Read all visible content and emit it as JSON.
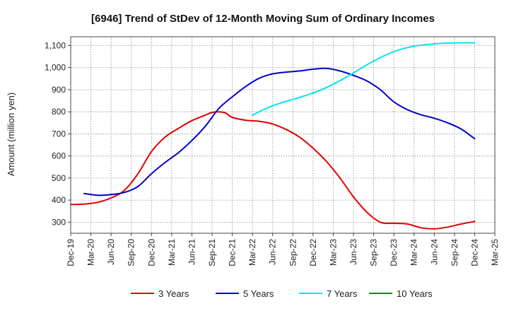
{
  "chart_data": {
    "type": "line",
    "title": "[6946]  Trend of StDev of 12-Month Moving Sum of Ordinary Incomes",
    "ylabel": "Amount (million yen)",
    "xlabel": "",
    "ylim": [
      250,
      1140
    ],
    "yticks": [
      300,
      400,
      500,
      600,
      700,
      800,
      900,
      1000,
      1100
    ],
    "ytick_labels": [
      "300",
      "400",
      "500",
      "600",
      "700",
      "800",
      "900",
      "1,000",
      "1,100"
    ],
    "xlim": [
      0,
      63
    ],
    "xticks": [
      {
        "m": 0,
        "label": "Dec-19"
      },
      {
        "m": 3,
        "label": "Mar-20"
      },
      {
        "m": 6,
        "label": "Jun-20"
      },
      {
        "m": 9,
        "label": "Sep-20"
      },
      {
        "m": 12,
        "label": "Dec-20"
      },
      {
        "m": 15,
        "label": "Mar-21"
      },
      {
        "m": 18,
        "label": "Jun-21"
      },
      {
        "m": 21,
        "label": "Sep-21"
      },
      {
        "m": 24,
        "label": "Dec-21"
      },
      {
        "m": 27,
        "label": "Mar-22"
      },
      {
        "m": 30,
        "label": "Jun-22"
      },
      {
        "m": 33,
        "label": "Sep-22"
      },
      {
        "m": 36,
        "label": "Dec-22"
      },
      {
        "m": 39,
        "label": "Mar-23"
      },
      {
        "m": 42,
        "label": "Jun-23"
      },
      {
        "m": 45,
        "label": "Sep-23"
      },
      {
        "m": 48,
        "label": "Dec-23"
      },
      {
        "m": 51,
        "label": "Mar-24"
      },
      {
        "m": 54,
        "label": "Jun-24"
      },
      {
        "m": 57,
        "label": "Sep-24"
      },
      {
        "m": 60,
        "label": "Dec-24"
      },
      {
        "m": 63,
        "label": "Mar-25"
      }
    ],
    "grid": true,
    "legend_position": "bottom",
    "series": [
      {
        "name": "3 Years",
        "color": "#e00000",
        "points": [
          [
            0,
            380
          ],
          [
            2,
            382
          ],
          [
            4,
            390
          ],
          [
            6,
            410
          ],
          [
            8,
            445
          ],
          [
            10,
            520
          ],
          [
            12,
            620
          ],
          [
            14,
            685
          ],
          [
            16,
            725
          ],
          [
            18,
            760
          ],
          [
            20,
            785
          ],
          [
            21,
            797
          ],
          [
            22,
            800
          ],
          [
            23,
            795
          ],
          [
            24,
            775
          ],
          [
            26,
            762
          ],
          [
            28,
            757
          ],
          [
            30,
            745
          ],
          [
            32,
            720
          ],
          [
            34,
            685
          ],
          [
            36,
            635
          ],
          [
            38,
            575
          ],
          [
            40,
            500
          ],
          [
            42,
            415
          ],
          [
            44,
            345
          ],
          [
            46,
            300
          ],
          [
            48,
            295
          ],
          [
            50,
            292
          ],
          [
            52,
            275
          ],
          [
            54,
            270
          ],
          [
            56,
            278
          ],
          [
            58,
            292
          ],
          [
            60,
            303
          ]
        ]
      },
      {
        "name": "5 Years",
        "color": "#0000cc",
        "points": [
          [
            2,
            430
          ],
          [
            4,
            422
          ],
          [
            6,
            425
          ],
          [
            8,
            435
          ],
          [
            10,
            462
          ],
          [
            12,
            520
          ],
          [
            14,
            570
          ],
          [
            16,
            615
          ],
          [
            18,
            670
          ],
          [
            20,
            735
          ],
          [
            22,
            815
          ],
          [
            24,
            868
          ],
          [
            26,
            915
          ],
          [
            28,
            952
          ],
          [
            30,
            972
          ],
          [
            32,
            980
          ],
          [
            34,
            985
          ],
          [
            36,
            993
          ],
          [
            38,
            997
          ],
          [
            40,
            985
          ],
          [
            42,
            965
          ],
          [
            44,
            940
          ],
          [
            46,
            900
          ],
          [
            48,
            845
          ],
          [
            50,
            810
          ],
          [
            52,
            787
          ],
          [
            54,
            771
          ],
          [
            56,
            750
          ],
          [
            58,
            722
          ],
          [
            60,
            678
          ]
        ]
      },
      {
        "name": "7 Years",
        "color": "#00e5ee",
        "points": [
          [
            27,
            785
          ],
          [
            29,
            815
          ],
          [
            31,
            838
          ],
          [
            33,
            856
          ],
          [
            35,
            875
          ],
          [
            37,
            897
          ],
          [
            39,
            925
          ],
          [
            41,
            958
          ],
          [
            43,
            995
          ],
          [
            45,
            1030
          ],
          [
            47,
            1060
          ],
          [
            49,
            1083
          ],
          [
            51,
            1097
          ],
          [
            53,
            1105
          ],
          [
            55,
            1110
          ],
          [
            57,
            1112
          ],
          [
            60,
            1112
          ]
        ]
      },
      {
        "name": "10 Years",
        "color": "#208020",
        "points": []
      }
    ]
  }
}
